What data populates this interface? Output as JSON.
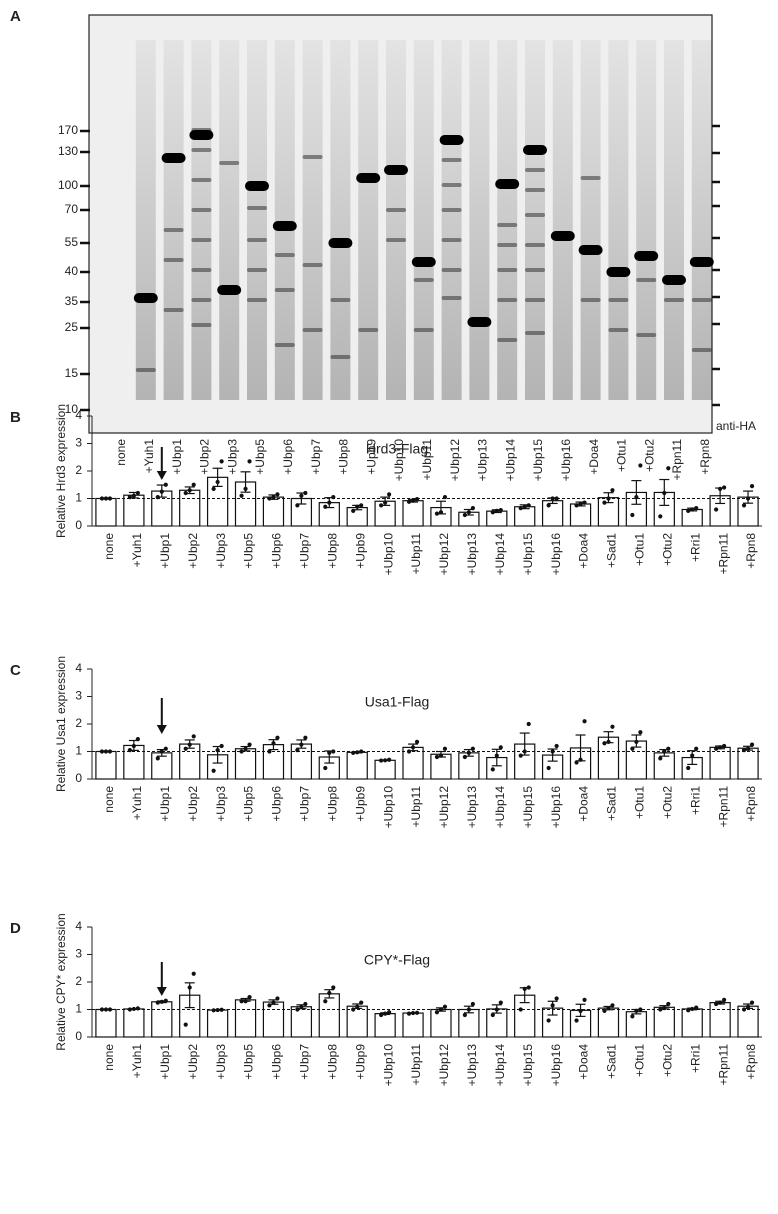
{
  "blot": {
    "panel_label": "A",
    "markers": [
      170,
      130,
      100,
      70,
      55,
      40,
      35,
      25,
      15,
      10
    ],
    "lanes": [
      "none",
      "+Yuh1",
      "+Ubp1",
      "+Ubp2",
      "+Ubp3",
      "+Ubp5",
      "+Ubp6",
      "+Ubp7",
      "+Ubp8",
      "+Upb9",
      "+Ubp10",
      "+Ubp11",
      "+Ubp12",
      "+Ubp13",
      "+Ubp14",
      "+Ubp15",
      "+Ubp16",
      "+Doa4",
      "+Otu1",
      "+Otu2",
      "+Rpn11",
      "+Rpn8"
    ],
    "antibody": "anti-HA"
  },
  "chart_data": [
    {
      "type": "bar",
      "panel_label": "B",
      "title": "Hrd3-Flag",
      "ylabel": "Relative Hrd3 expression",
      "categories": [
        "none",
        "+Yuh1",
        "+Ubp1",
        "+Ubp2",
        "+Ubp3",
        "+Ubp5",
        "+Ubp6",
        "+Ubp7",
        "+Ubp8",
        "+Upb9",
        "+Ubp10",
        "+Ubp11",
        "+Ubp12",
        "+Ubp13",
        "+Ubp14",
        "+Ubp15",
        "+Ubp16",
        "+Doa4",
        "+Sad1",
        "+Otu1",
        "+Otu2",
        "+Rri1",
        "+Rpn11",
        "+Rpn8"
      ],
      "values": [
        1,
        1.12,
        1.27,
        1.3,
        1.77,
        1.6,
        1.05,
        1.0,
        0.85,
        0.67,
        0.9,
        0.92,
        0.67,
        0.5,
        0.54,
        0.7,
        0.92,
        0.8,
        1.03,
        1.22,
        1.22,
        0.6,
        1.1,
        1.05
      ],
      "errors": [
        0.02,
        0.1,
        0.22,
        0.12,
        0.33,
        0.37,
        0.08,
        0.2,
        0.18,
        0.08,
        0.15,
        0.05,
        0.23,
        0.1,
        0.05,
        0.07,
        0.1,
        0.07,
        0.18,
        0.43,
        0.47,
        0.05,
        0.28,
        0.22
      ],
      "points": [
        [
          1,
          1,
          1
        ],
        [
          1.05,
          1.1,
          1.2
        ],
        [
          1.05,
          1.25,
          1.5
        ],
        [
          1.2,
          1.3,
          1.5
        ],
        [
          1.35,
          1.6,
          2.35
        ],
        [
          1.1,
          1.35,
          2.35
        ],
        [
          1.0,
          1.05,
          1.15
        ],
        [
          0.75,
          1.1,
          1.2
        ],
        [
          0.7,
          0.85,
          1.05
        ],
        [
          0.55,
          0.7,
          0.75
        ],
        [
          0.75,
          0.85,
          1.15
        ],
        [
          0.88,
          0.92,
          0.98
        ],
        [
          0.45,
          0.5,
          1.05
        ],
        [
          0.4,
          0.5,
          0.65
        ],
        [
          0.5,
          0.55,
          0.58
        ],
        [
          0.65,
          0.7,
          0.75
        ],
        [
          0.75,
          1.0,
          1.0
        ],
        [
          0.75,
          0.8,
          0.85
        ],
        [
          0.85,
          1.0,
          1.3
        ],
        [
          0.4,
          1.05,
          2.2
        ],
        [
          0.35,
          1.2,
          2.1
        ],
        [
          0.55,
          0.6,
          0.65
        ],
        [
          0.6,
          1.35,
          1.4
        ],
        [
          0.75,
          1.0,
          1.45
        ]
      ],
      "ylim": [
        0,
        4
      ],
      "yticks": [
        0,
        1,
        2,
        3,
        4
      ],
      "hline": 1,
      "color": "#ffffff"
    },
    {
      "type": "bar",
      "panel_label": "C",
      "title": "Usa1-Flag",
      "ylabel": "Relative Usa1 expression",
      "categories": [
        "none",
        "+Yuh1",
        "+Ubp1",
        "+Ubp2",
        "+Ubp3",
        "+Ubp5",
        "+Ubp6",
        "+Ubp7",
        "+Ubp8",
        "+Upb9",
        "+Ubp10",
        "+Ubp11",
        "+Ubp12",
        "+Ubp13",
        "+Ubp14",
        "+Ubp15",
        "+Ubp16",
        "+Doa4",
        "+Sad1",
        "+Otu1",
        "+Otu2",
        "+Rri1",
        "+Rpn11",
        "+Rpn8"
      ],
      "values": [
        1,
        1.22,
        0.95,
        1.27,
        0.88,
        1.1,
        1.25,
        1.27,
        0.8,
        0.97,
        0.68,
        1.15,
        0.9,
        0.95,
        0.78,
        1.27,
        0.87,
        1.13,
        1.52,
        1.38,
        0.95,
        0.78,
        1.15,
        1.12
      ],
      "errors": [
        0.01,
        0.18,
        0.12,
        0.15,
        0.3,
        0.08,
        0.18,
        0.15,
        0.22,
        0.02,
        0.01,
        0.12,
        0.1,
        0.12,
        0.3,
        0.4,
        0.22,
        0.47,
        0.2,
        0.22,
        0.12,
        0.25,
        0.05,
        0.07
      ],
      "points": [
        [
          1,
          1,
          1
        ],
        [
          1.05,
          1.2,
          1.45
        ],
        [
          0.75,
          1.0,
          1.1
        ],
        [
          1.1,
          1.25,
          1.55
        ],
        [
          0.3,
          1.05,
          1.2
        ],
        [
          1.0,
          1.1,
          1.25
        ],
        [
          1.0,
          1.3,
          1.5
        ],
        [
          1.05,
          1.25,
          1.5
        ],
        [
          0.4,
          0.95,
          1.0
        ],
        [
          0.95,
          0.97,
          1.0
        ],
        [
          0.67,
          0.68,
          0.7
        ],
        [
          1.0,
          1.15,
          1.35
        ],
        [
          0.8,
          0.85,
          1.1
        ],
        [
          0.8,
          0.95,
          1.1
        ],
        [
          0.35,
          0.85,
          1.15
        ],
        [
          0.85,
          1.0,
          2.0
        ],
        [
          0.4,
          1.0,
          1.2
        ],
        [
          0.6,
          0.7,
          2.1
        ],
        [
          1.3,
          1.35,
          1.9
        ],
        [
          1.1,
          1.35,
          1.7
        ],
        [
          0.75,
          1.0,
          1.1
        ],
        [
          0.4,
          0.85,
          1.1
        ],
        [
          1.1,
          1.15,
          1.2
        ],
        [
          1.05,
          1.1,
          1.25
        ]
      ],
      "ylim": [
        0,
        4
      ],
      "yticks": [
        0,
        1,
        2,
        3,
        4
      ],
      "hline": 1,
      "color": "#ffffff"
    },
    {
      "type": "bar",
      "panel_label": "D",
      "title": "CPY*-Flag",
      "ylabel": "Relative CPY* expression",
      "categories": [
        "none",
        "+Yuh1",
        "+Ubp1",
        "+Ubp2",
        "+Ubp3",
        "+Ubp5",
        "+Ubp6",
        "+Ubp7",
        "+Ubp8",
        "+Ubp9",
        "+Ubp10",
        "+Ubp11",
        "+Ubp12",
        "+Ubp13",
        "+Ubp14",
        "+Ubp15",
        "+Ubp16",
        "+Doa4",
        "+Sad1",
        "+Otu1",
        "+Otu2",
        "+Rri1",
        "+Rpn11",
        "+Rpn8"
      ],
      "values": [
        1,
        1.02,
        1.28,
        1.52,
        0.98,
        1.35,
        1.27,
        1.1,
        1.57,
        1.12,
        0.85,
        0.87,
        1.0,
        1.0,
        1.02,
        1.52,
        1.05,
        0.97,
        1.05,
        0.92,
        1.08,
        1.02,
        1.25,
        1.12
      ],
      "errors": [
        0.01,
        0.01,
        0.03,
        0.45,
        0.01,
        0.05,
        0.08,
        0.07,
        0.15,
        0.08,
        0.03,
        0.01,
        0.06,
        0.12,
        0.15,
        0.27,
        0.25,
        0.22,
        0.06,
        0.08,
        0.06,
        0.03,
        0.05,
        0.08
      ],
      "points": [
        [
          1,
          1,
          1
        ],
        [
          1,
          1.02,
          1.04
        ],
        [
          1.25,
          1.28,
          1.32
        ],
        [
          0.45,
          1.8,
          2.3
        ],
        [
          0.97,
          0.98,
          0.99
        ],
        [
          1.3,
          1.3,
          1.45
        ],
        [
          1.15,
          1.25,
          1.4
        ],
        [
          1.0,
          1.1,
          1.2
        ],
        [
          1.3,
          1.6,
          1.8
        ],
        [
          1.0,
          1.1,
          1.25
        ],
        [
          0.8,
          0.85,
          0.9
        ],
        [
          0.85,
          0.87,
          0.88
        ],
        [
          0.9,
          1.0,
          1.1
        ],
        [
          0.8,
          1.0,
          1.2
        ],
        [
          0.8,
          1.0,
          1.25
        ],
        [
          1.0,
          1.75,
          1.8
        ],
        [
          0.6,
          1.15,
          1.4
        ],
        [
          0.6,
          0.95,
          1.35
        ],
        [
          0.95,
          1.05,
          1.15
        ],
        [
          0.75,
          0.95,
          1.0
        ],
        [
          1.0,
          1.05,
          1.2
        ],
        [
          0.97,
          1.02,
          1.07
        ],
        [
          1.2,
          1.25,
          1.35
        ],
        [
          1.0,
          1.1,
          1.25
        ]
      ],
      "ylim": [
        0,
        4
      ],
      "yticks": [
        0,
        1,
        2,
        3,
        4
      ],
      "hline": 1,
      "color": "#ffffff"
    }
  ]
}
